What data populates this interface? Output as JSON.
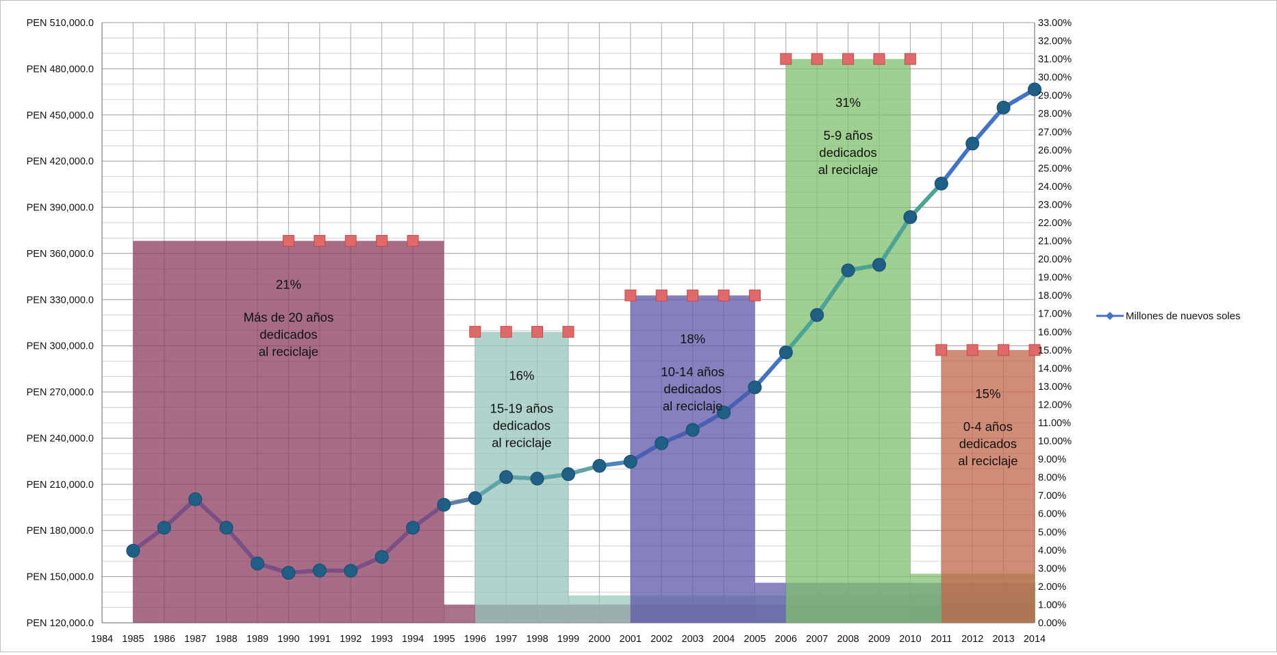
{
  "chart_data": {
    "type": "line",
    "x_range": [
      1984,
      2014
    ],
    "x_ticks": [
      "1984",
      "1985",
      "1986",
      "1987",
      "1988",
      "1989",
      "1990",
      "1991",
      "1992",
      "1993",
      "1994",
      "1995",
      "1996",
      "1997",
      "1998",
      "1999",
      "2000",
      "2001",
      "2002",
      "2003",
      "2004",
      "2005",
      "2006",
      "2007",
      "2008",
      "2009",
      "2010",
      "2011",
      "2012",
      "2013",
      "2014"
    ],
    "y_left": {
      "min": 120000,
      "max": 510000,
      "step": 30000,
      "minor_step": 10000,
      "ticks": [
        "PEN 120,000.0",
        "PEN 150,000.0",
        "PEN 180,000.0",
        "PEN 210,000.0",
        "PEN 240,000.0",
        "PEN 270,000.0",
        "PEN 300,000.0",
        "PEN 330,000.0",
        "PEN 360,000.0",
        "PEN 390,000.0",
        "PEN 420,000.0",
        "PEN 450,000.0",
        "PEN 480,000.0",
        "PEN 510,000.0"
      ]
    },
    "y_right": {
      "min": 0,
      "max": 33,
      "step": 1,
      "ticks": [
        "0.00%",
        "1.00%",
        "2.00%",
        "3.00%",
        "4.00%",
        "5.00%",
        "6.00%",
        "7.00%",
        "8.00%",
        "9.00%",
        "10.00%",
        "11.00%",
        "12.00%",
        "13.00%",
        "14.00%",
        "15.00%",
        "16.00%",
        "17.00%",
        "18.00%",
        "19.00%",
        "20.00%",
        "21.00%",
        "22.00%",
        "23.00%",
        "24.00%",
        "25.00%",
        "26.00%",
        "27.00%",
        "28.00%",
        "29.00%",
        "30.00%",
        "31.00%",
        "32.00%",
        "33.00%"
      ]
    },
    "grid": true,
    "legend": {
      "position": "right",
      "label": "Millones de nuevos soles",
      "color": "#4472c4"
    },
    "series": [
      {
        "name": "Millones de nuevos soles",
        "axis": "left",
        "x": [
          1985,
          1986,
          1987,
          1988,
          1989,
          1990,
          1991,
          1992,
          1993,
          1994,
          1995,
          1996,
          1997,
          1998,
          1999,
          2000,
          2001,
          2002,
          2003,
          2004,
          2005,
          2006,
          2007,
          2008,
          2009,
          2010,
          2011,
          2012,
          2013,
          2014
        ],
        "values": [
          166800,
          181800,
          200300,
          181800,
          158500,
          152500,
          154000,
          153800,
          162800,
          181800,
          196700,
          201000,
          214700,
          213700,
          216600,
          222000,
          224700,
          236700,
          245300,
          256700,
          273000,
          295700,
          320000,
          349000,
          352600,
          383600,
          405400,
          431400,
          454800,
          466600
        ]
      }
    ],
    "blocks": [
      {
        "name": "21%",
        "pct": 21,
        "start": 1985,
        "end": 1995,
        "label_pct": "21%",
        "label_lines": [
          "Más de 20 años",
          "dedicados",
          "al reciclaje"
        ],
        "color": "#8a3b5e",
        "markers_x": [
          1990,
          1991,
          1992,
          1993,
          1994
        ]
      },
      {
        "name": "16%",
        "pct": 16,
        "start": 1996,
        "end": 1999,
        "label_pct": "16%",
        "label_lines": [
          "15-19 años",
          "dedicados",
          "al reciclaje"
        ],
        "color": "#95c6ba",
        "markers_x": [
          1996,
          1997,
          1998,
          1999
        ]
      },
      {
        "name": "18%",
        "pct": 18,
        "start": 2001,
        "end": 2005,
        "label_pct": "18%",
        "label_lines": [
          "10-14 años",
          "dedicados",
          "al reciclaje"
        ],
        "color": "#5c57a8",
        "markers_x": [
          2001,
          2002,
          2003,
          2004,
          2005
        ]
      },
      {
        "name": "31%",
        "pct": 31,
        "start": 2006,
        "end": 2010,
        "label_pct": "31%",
        "label_lines": [
          "5-9 años",
          "dedicados",
          "al reciclaje"
        ],
        "color": "#7fbf6c",
        "markers_x": [
          2006,
          2007,
          2008,
          2009,
          2010
        ]
      },
      {
        "name": "15%",
        "pct": 15,
        "start": 2011,
        "end": 2014,
        "label_pct": "15%",
        "label_lines": [
          "0-4 años",
          "dedicados",
          "al reciclaje"
        ],
        "color": "#c2664a",
        "markers_x": [
          2011,
          2012,
          2013,
          2014
        ]
      }
    ],
    "base_bands": [
      {
        "start": 1995,
        "end": 2014,
        "top_pct": 1.0,
        "color": "#8a3b5e"
      },
      {
        "start": 1999,
        "end": 2014,
        "top_pct": 1.5,
        "color": "#95c6ba"
      },
      {
        "start": 2005,
        "end": 2014,
        "top_pct": 2.2,
        "color": "#5c57a8"
      },
      {
        "start": 2010,
        "end": 2014,
        "top_pct": 2.7,
        "color": "#7fbf6c"
      }
    ]
  }
}
